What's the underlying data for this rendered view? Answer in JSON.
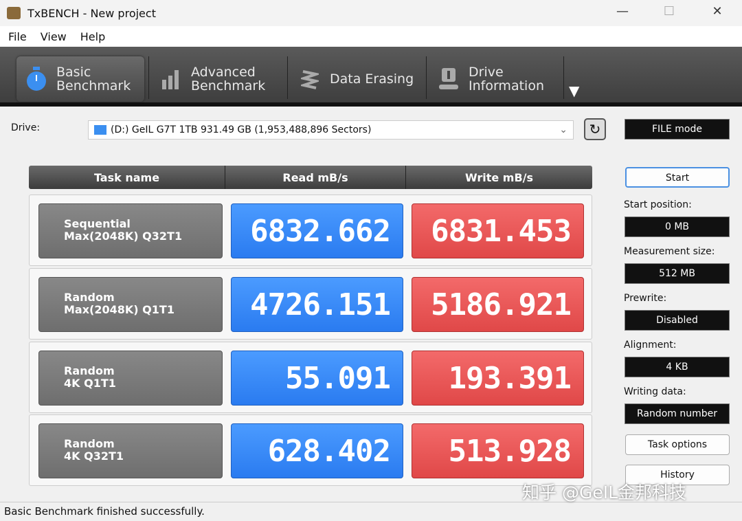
{
  "window": {
    "title": "TxBENCH - New project",
    "minimize": "—",
    "maximize": "☐",
    "close": "✕"
  },
  "menu": [
    "File",
    "View",
    "Help"
  ],
  "toolbar": {
    "tabs": [
      {
        "label1": "Basic",
        "label2": "Benchmark",
        "icon": "stopwatch-icon"
      },
      {
        "label1": "Advanced",
        "label2": "Benchmark",
        "icon": "bar-chart-icon"
      },
      {
        "label1": "Data Erasing",
        "label2": "",
        "icon": "eraser-icon"
      },
      {
        "label1": "Drive",
        "label2": "Information",
        "icon": "drive-info-icon"
      }
    ],
    "more": "▼"
  },
  "drive": {
    "label": "Drive:",
    "value": "(D:) GeIL G7T 1TB  931.49 GB (1,953,488,896 Sectors)"
  },
  "mode": "FILE mode",
  "table": {
    "headers": [
      "Task name",
      "Read mB/s",
      "Write mB/s"
    ],
    "rows": [
      {
        "name1": "Sequential",
        "name2": "Max(2048K) Q32T1",
        "read": "6832.662",
        "write": "6831.453"
      },
      {
        "name1": "Random",
        "name2": "Max(2048K) Q1T1",
        "read": "4726.151",
        "write": "5186.921"
      },
      {
        "name1": "Random",
        "name2": "4K Q1T1",
        "read": "55.091",
        "write": "193.391"
      },
      {
        "name1": "Random",
        "name2": "4K Q32T1",
        "read": "628.402",
        "write": "513.928"
      }
    ]
  },
  "side": {
    "start": "Start",
    "start_position_label": "Start position:",
    "start_position": "0 MB",
    "measurement_label": "Measurement size:",
    "measurement": "512 MB",
    "prewrite_label": "Prewrite:",
    "prewrite": "Disabled",
    "alignment_label": "Alignment:",
    "alignment": "4 KB",
    "writing_label": "Writing data:",
    "writing": "Random number",
    "task_options": "Task options",
    "history": "History"
  },
  "status": "Basic Benchmark finished successfully.",
  "watermark": "知乎 @GeIL金邦科技",
  "colors": {
    "read": "#2a7bf0",
    "write": "#e04848"
  }
}
